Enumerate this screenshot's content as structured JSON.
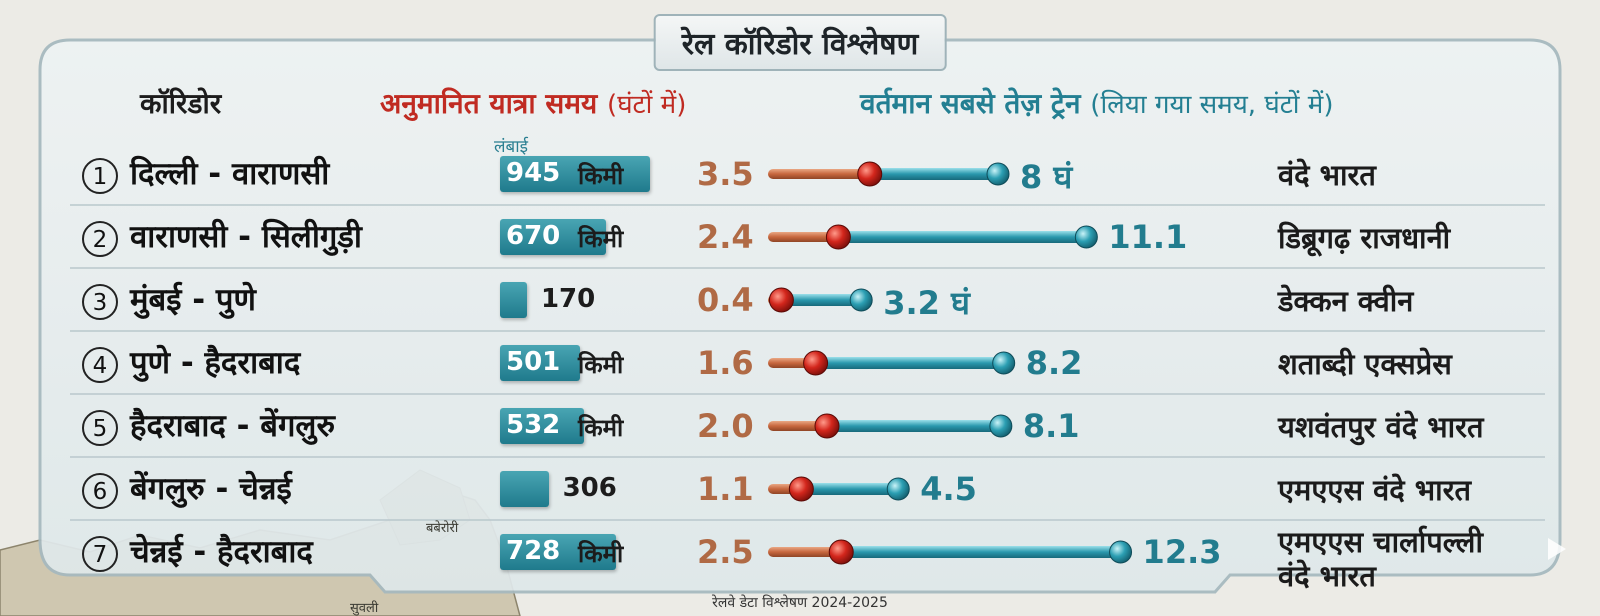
{
  "title": "रेल कॉरिडोर विश्लेषण",
  "headers": {
    "corridor": "कॉरिडोर",
    "estimated_main": "अनुमानित यात्रा समय",
    "estimated_paren": "(घंटों में)",
    "current_main": "वर्तमान सबसे तेज़ ट्रेन",
    "current_paren": "(लिया गया समय, घंटों में)",
    "length": "लंबाई"
  },
  "footer": "रेलवे डेटा विश्लेषण 2024-2025",
  "map_labels": [
    "बबेरोरी",
    "सुवली"
  ],
  "colors": {
    "estimated": "#c7673e",
    "current": "#2a98ad",
    "length_bar": "#2b8a9a"
  },
  "chart_data": {
    "type": "table",
    "columns": [
      "कॉरिडोर",
      "लंबाई",
      "अनुमानित यात्रा समय (घंटों में)",
      "वर्तमान सबसे तेज़ ट्रेन (लिया गया समय, घंटों में)"
    ],
    "rows": [
      {
        "num": "1",
        "corridor": "दिल्ली - वाराणसी",
        "length": 945,
        "length_text": "945",
        "length_unit": "किमी",
        "estimated": 3.5,
        "estimated_text": "3.5",
        "current": 8,
        "current_text": "8 घं",
        "train": "वंदे भारत"
      },
      {
        "num": "2",
        "corridor": "वाराणसी - सिलीगुड़ी",
        "length": 670,
        "length_text": "670",
        "length_unit": "किमी",
        "estimated": 2.4,
        "estimated_text": "2.4",
        "current": 11.1,
        "current_text": "11.1",
        "train": "डिब्रूगढ़ राजधानी"
      },
      {
        "num": "3",
        "corridor": "मुंबई - पुणे",
        "length": 170,
        "length_text": "170",
        "length_unit": "",
        "estimated": 0.4,
        "estimated_text": "0.4",
        "current": 3.2,
        "current_text": "3.2  घं",
        "train": "डेक्कन क्वीन"
      },
      {
        "num": "4",
        "corridor": "पुणे - हैदराबाद",
        "length": 501,
        "length_text": "501",
        "length_unit": "किमी",
        "estimated": 1.6,
        "estimated_text": "1.6",
        "current": 8.2,
        "current_text": "8.2",
        "train": "शताब्दी एक्सप्रेस"
      },
      {
        "num": "5",
        "corridor": "हैदराबाद - बेंगलुरु",
        "length": 532,
        "length_text": "532",
        "length_unit": "किमी",
        "estimated": 2.0,
        "estimated_text": "2.0",
        "current": 8.1,
        "current_text": "8.1",
        "train": "यशवंतपुर वंदे भारत"
      },
      {
        "num": "6",
        "corridor": "बेंगलुरु - चेन्नई",
        "length": 306,
        "length_text": "306",
        "length_unit": "",
        "estimated": 1.1,
        "estimated_text": "1.1",
        "current": 4.5,
        "current_text": "4.5",
        "train": "एमएएस वंदे भारत"
      },
      {
        "num": "7",
        "corridor": "चेन्नई - हैदराबाद",
        "length": 728,
        "length_text": "728",
        "length_unit": "किमी",
        "estimated": 2.5,
        "estimated_text": "2.5",
        "current": 12.3,
        "current_text": "12.3",
        "train_lines": [
          "एमएएस चार्लापल्ली",
          "वंदे भारत"
        ]
      }
    ]
  }
}
